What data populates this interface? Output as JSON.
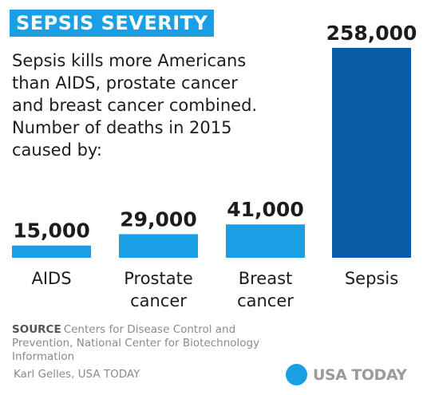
{
  "header": {
    "title": "SEPSIS SEVERITY",
    "subtitle_lines": [
      "Sepsis kills more Americans",
      "than AIDS, prostate cancer",
      "and breast cancer combined.",
      "Number of deaths in 2015",
      "caused by:"
    ]
  },
  "chart_data": {
    "type": "bar",
    "categories": [
      "AIDS",
      "Prostate cancer",
      "Breast cancer",
      "Sepsis"
    ],
    "category_lines": [
      [
        "AIDS"
      ],
      [
        "Prostate",
        "cancer"
      ],
      [
        "Breast",
        "cancer"
      ],
      [
        "Sepsis"
      ]
    ],
    "values": [
      15000,
      29000,
      41000,
      258000
    ],
    "value_labels": [
      "15,000",
      "29,000",
      "41,000",
      "258,000"
    ],
    "colors": [
      "#1a9fe5",
      "#1a9fe5",
      "#1a9fe5",
      "#0b5aa5"
    ],
    "ylim": [
      0,
      258000
    ]
  },
  "footer": {
    "source_label": "SOURCE",
    "source_text": "Centers for Disease Control and Prevention, National Center for Biotechnology Information",
    "credit": "Karl Gelles, USA TODAY",
    "logo_text": "USA TODAY"
  }
}
